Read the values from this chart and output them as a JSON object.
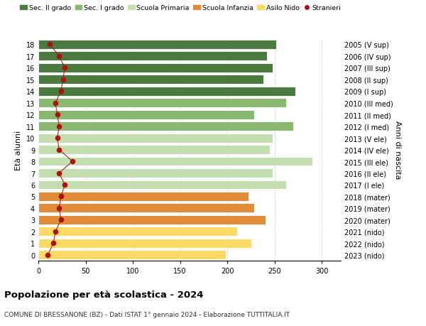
{
  "ages": [
    0,
    1,
    2,
    3,
    4,
    5,
    6,
    7,
    8,
    9,
    10,
    11,
    12,
    13,
    14,
    15,
    16,
    17,
    18
  ],
  "bar_values": [
    198,
    225,
    210,
    240,
    228,
    222,
    262,
    248,
    290,
    245,
    248,
    270,
    228,
    262,
    272,
    238,
    248,
    242,
    252
  ],
  "stranieri_values": [
    10,
    16,
    18,
    24,
    22,
    24,
    28,
    22,
    36,
    22,
    20,
    22,
    20,
    18,
    24,
    26,
    28,
    22,
    12
  ],
  "bar_colors": [
    "#FFD966",
    "#FFD966",
    "#FFD966",
    "#E08C3A",
    "#E08C3A",
    "#E08C3A",
    "#C5DEB0",
    "#C5DEB0",
    "#C5DEB0",
    "#C5DEB0",
    "#C5DEB0",
    "#8BB870",
    "#8BB870",
    "#8BB870",
    "#4A7A40",
    "#4A7A40",
    "#4A7A40",
    "#4A7A40",
    "#4A7A40"
  ],
  "right_labels": [
    "2023 (nido)",
    "2022 (nido)",
    "2021 (nido)",
    "2020 (mater)",
    "2019 (mater)",
    "2018 (mater)",
    "2017 (I ele)",
    "2016 (II ele)",
    "2015 (III ele)",
    "2014 (IV ele)",
    "2013 (V ele)",
    "2012 (I med)",
    "2011 (II med)",
    "2010 (III med)",
    "2009 (I sup)",
    "2008 (II sup)",
    "2007 (III sup)",
    "2006 (IV sup)",
    "2005 (V sup)"
  ],
  "legend_labels": [
    "Sec. II grado",
    "Sec. I grado",
    "Scuola Primaria",
    "Scuola Infanzia",
    "Asilo Nido",
    "Stranieri"
  ],
  "legend_colors": [
    "#4A7A40",
    "#8BB870",
    "#C5DEB0",
    "#E08C3A",
    "#FFD966",
    "#AA1111"
  ],
  "ylabel": "Età alunni",
  "right_ylabel": "Anni di nascita",
  "title": "Popolazione per età scolastica - 2024",
  "subtitle": "COMUNE DI BRESSANONE (BZ) - Dati ISTAT 1° gennaio 2024 - Elaborazione TUTTITALIA.IT",
  "xlim": [
    0,
    320
  ],
  "xticks": [
    0,
    50,
    100,
    150,
    200,
    250,
    300
  ],
  "bar_height": 0.78,
  "background_color": "#ffffff",
  "grid_color": "#cccccc",
  "stranieri_color": "#AA1111",
  "stranieri_line_color": "#AA1111"
}
